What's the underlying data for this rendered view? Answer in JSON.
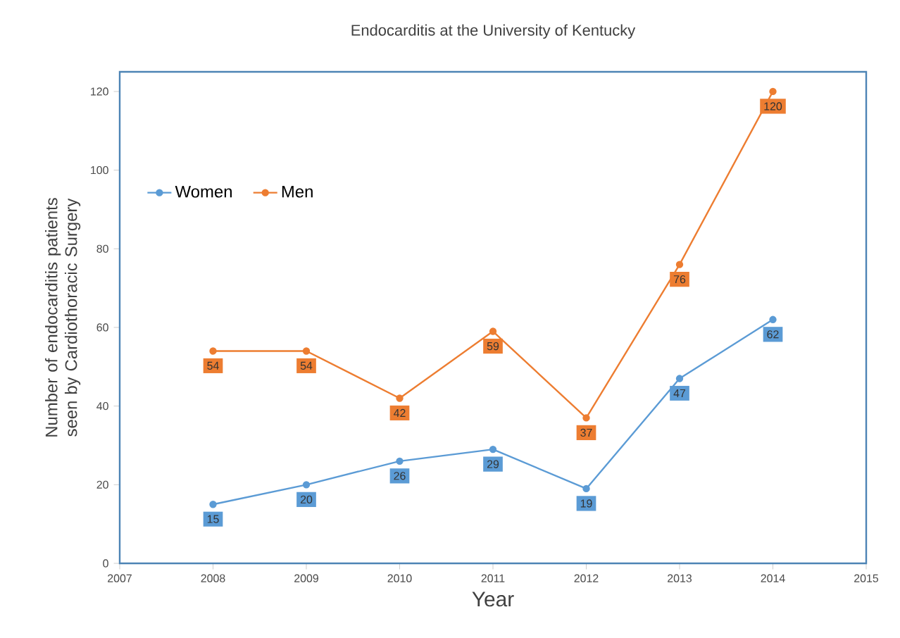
{
  "chart_data": {
    "type": "line",
    "title": "Endocarditis at the University of Kentucky",
    "xlabel": "Year",
    "ylabel": "Number of endocarditis patients seen by Cardiothoracic Surgery",
    "x": [
      2008,
      2009,
      2010,
      2011,
      2012,
      2013,
      2014
    ],
    "series": [
      {
        "name": "Women",
        "color": "#5b9bd5",
        "values": [
          15,
          20,
          26,
          29,
          19,
          47,
          62
        ]
      },
      {
        "name": "Men",
        "color": "#ed7d31",
        "values": [
          54,
          54,
          42,
          59,
          37,
          76,
          120
        ]
      }
    ],
    "xlim": [
      2007,
      2015
    ],
    "xticks": [
      2007,
      2008,
      2009,
      2010,
      2011,
      2012,
      2013,
      2014,
      2015
    ],
    "ylim": [
      0,
      125
    ],
    "yticks": [
      0,
      20,
      40,
      60,
      80,
      100,
      120
    ],
    "grid": false,
    "legend": "top left",
    "marker": "circle",
    "line_style": "solid",
    "data_labels": true
  }
}
